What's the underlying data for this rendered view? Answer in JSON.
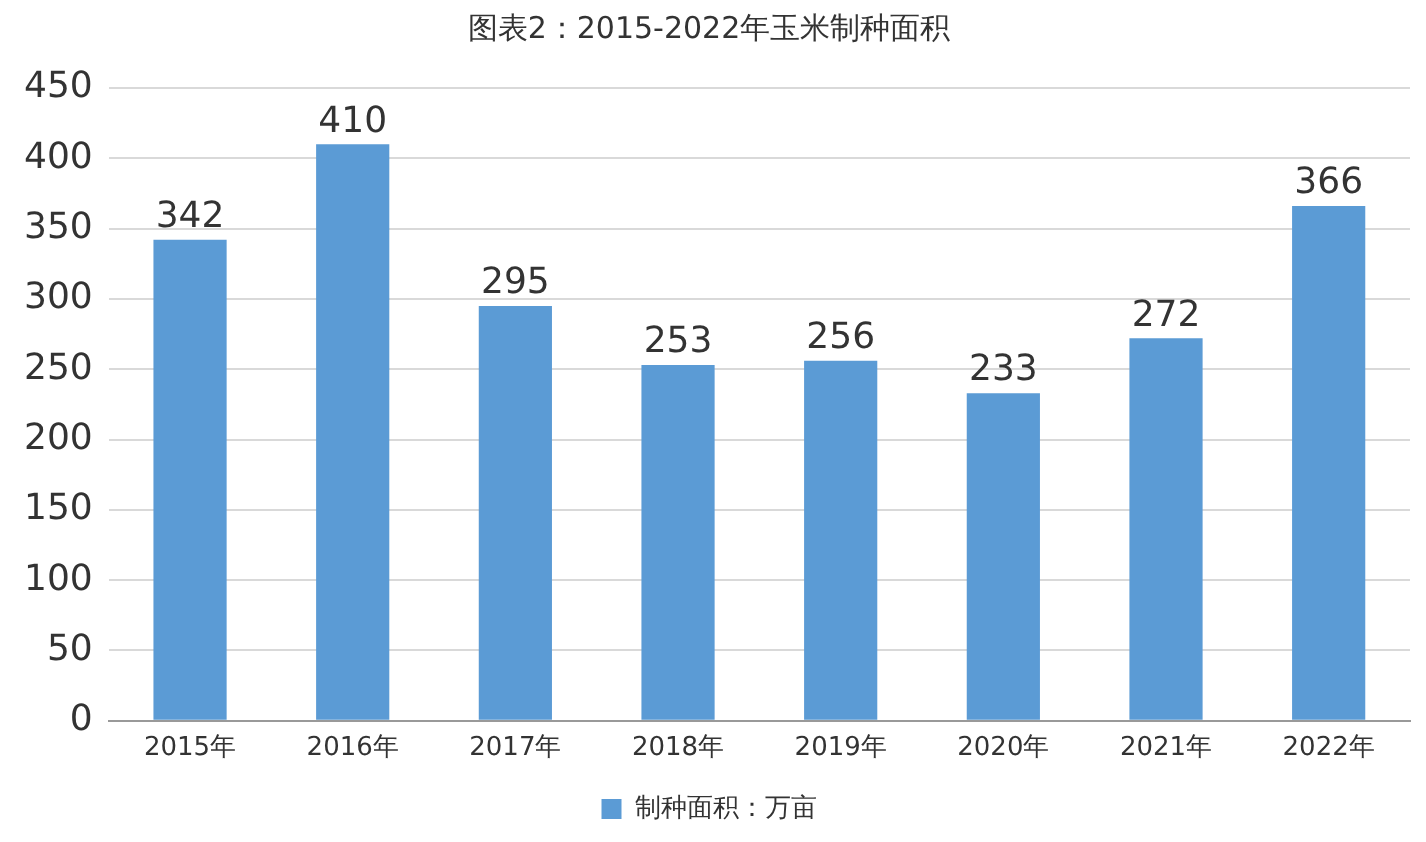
{
  "chart_data": {
    "type": "bar",
    "title": "图表2：2015-2022年玉米制种面积",
    "categories": [
      "2015年",
      "2016年",
      "2017年",
      "2018年",
      "2019年",
      "2020年",
      "2021年",
      "2022年"
    ],
    "series": [
      {
        "name": "制种面积：万亩",
        "color": "#5b9bd5",
        "values": [
          342,
          410,
          295,
          253,
          256,
          233,
          272,
          366
        ]
      }
    ],
    "ylim": [
      0,
      450
    ],
    "yticks": [
      0,
      50,
      100,
      150,
      200,
      250,
      300,
      350,
      400,
      450
    ],
    "grid": "y",
    "legend": "bottom",
    "data_labels": true
  }
}
